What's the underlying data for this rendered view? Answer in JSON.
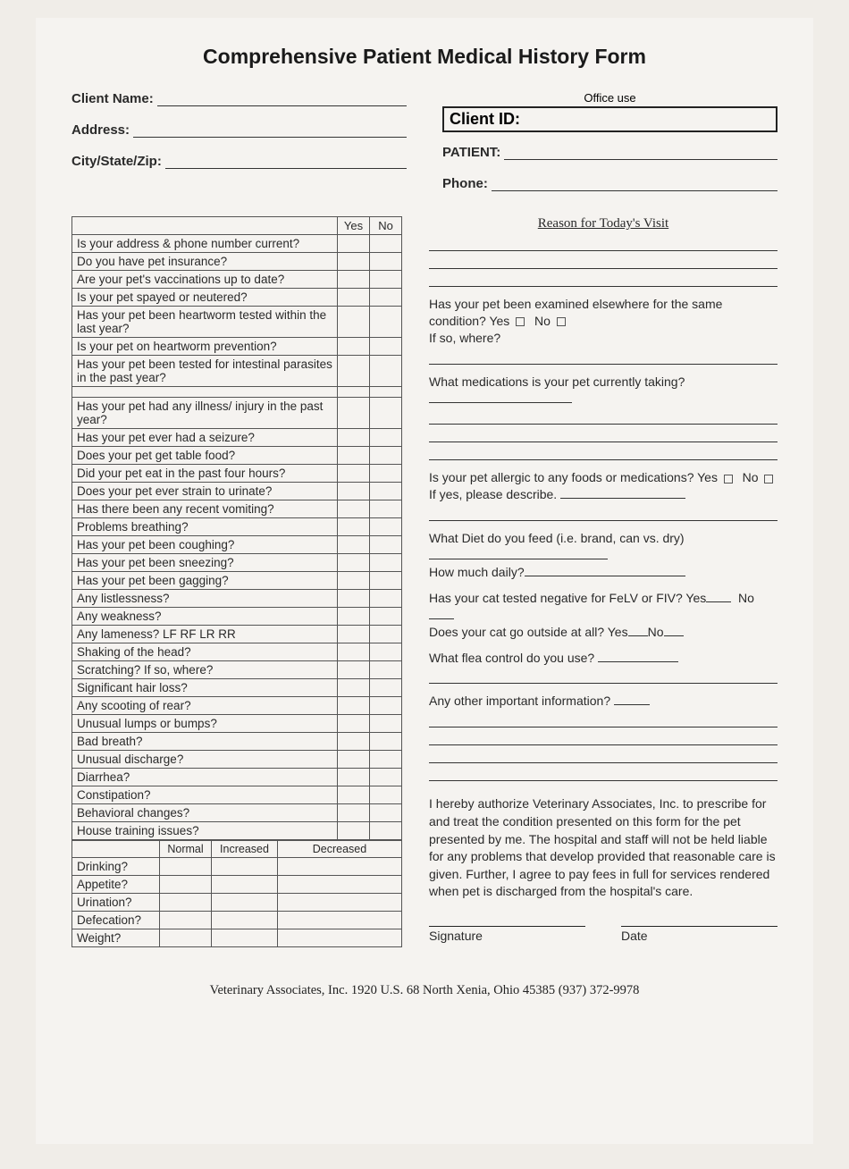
{
  "title": "Comprehensive Patient Medical History Form",
  "office_use": "Office use",
  "header": {
    "client_name": "Client Name:",
    "address": "Address:",
    "csz": "City/State/Zip:",
    "client_id": "Client ID:",
    "patient": "PATIENT:",
    "phone": "Phone:"
  },
  "yn_headers": {
    "yes": "Yes",
    "no": "No"
  },
  "questions_a": [
    "Is your address & phone number current?",
    "Do you have pet insurance?",
    "Are your pet's vaccinations up to date?",
    "Is your pet spayed or neutered?",
    "Has your pet been heartworm tested within the last year?",
    "Is your pet on heartworm prevention?",
    "Has your pet been tested for intestinal parasites in the past year?"
  ],
  "questions_b": [
    "Has your pet had any illness/ injury in the past year?",
    "Has your pet ever had a seizure?",
    "Does your pet get table food?",
    "Did your pet eat in the past four hours?",
    "Does your pet ever strain to urinate?",
    "Has there been any recent vomiting?",
    "Problems breathing?",
    "Has your pet been coughing?",
    "Has your pet been sneezing?",
    "Has your pet been gagging?",
    "Any listlessness?",
    "Any weakness?",
    "Any lameness?   LF RF LR RR",
    "Shaking of the head?",
    "Scratching?  If so, where?",
    "Significant hair loss?",
    "Any scooting of rear?",
    "Unusual lumps or bumps?",
    "Bad breath?",
    "Unusual discharge?",
    "Diarrhea?",
    "Constipation?",
    "Behavioral changes?",
    "House training issues?"
  ],
  "nid_headers": {
    "normal": "Normal",
    "increased": "Increased",
    "decreased": "Decreased"
  },
  "nid_rows": [
    "Drinking?",
    "Appetite?",
    "Urination?",
    "Defecation?",
    "Weight?"
  ],
  "right": {
    "reason_header": "Reason for Today's Visit",
    "examined_elsewhere": "Has your pet been examined elsewhere for the same condition?  Yes",
    "no": "No",
    "if_so_where": "If so, where?",
    "meds": "What medications is your pet currently taking?",
    "allergic": "Is your pet allergic to any foods or medications?   Yes",
    "if_yes_describe": "If yes, please describe.",
    "diet": "What Diet do you feed (i.e. brand, can vs. dry)",
    "how_much": "How much daily?",
    "felv": "Has your cat tested negative for FeLV or FIV? Yes",
    "outside": "Does your cat go outside at all? Yes",
    "flea": "What flea control do you use?",
    "other_info": "Any other important information?",
    "auth": "I hereby authorize Veterinary Associates, Inc. to prescribe for and treat the condition presented on this form for the pet presented by me.  The hospital and staff will not be held liable for any problems that develop provided that reasonable care is given.  Further, I agree to pay fees in full for services rendered when pet is discharged from the hospital's care.",
    "signature": "Signature",
    "date": "Date"
  },
  "footer": "Veterinary Associates, Inc.  1920 U.S. 68 North     Xenia, Ohio 45385     (937) 372-9978",
  "colors": {
    "page_bg": "#f5f3f0",
    "text": "#2a2a2a",
    "border": "#555"
  }
}
